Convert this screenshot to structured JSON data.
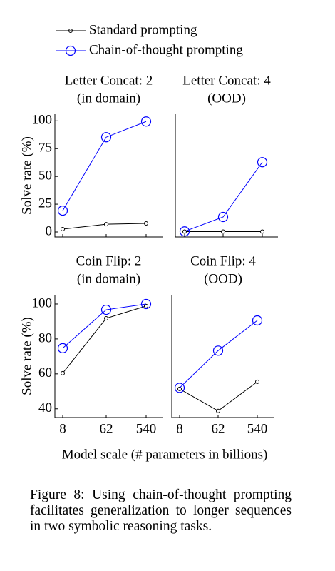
{
  "chart_data": [
    {
      "type": "line",
      "title": [
        "Letter Concat: 2",
        "(in domain)"
      ],
      "ylabel": "Solve rate (%)",
      "ylim": [
        -4.5,
        106
      ],
      "yticks": [
        0,
        25,
        50,
        75,
        100
      ],
      "series": [
        {
          "name": "Standard prompting",
          "color": "#000000",
          "values": [
            2.6,
            7,
            7.7
          ]
        },
        {
          "name": "Chain-of-thought prompting",
          "color": "#0000ff",
          "values": [
            19.2,
            85.3,
            99.4
          ]
        }
      ]
    },
    {
      "type": "line",
      "title": [
        "Letter Concat: 4",
        "(OOD)"
      ],
      "ylim": [
        -4.5,
        106
      ],
      "series": [
        {
          "color": "#000000",
          "values": [
            0.3,
            0.3,
            0.3
          ]
        },
        {
          "color": "#0000ff",
          "values": [
            0.5,
            13.5,
            62.8
          ]
        }
      ]
    },
    {
      "type": "line",
      "title": [
        "Coin Flip: 2",
        "(in domain)"
      ],
      "ylabel": "Solve rate (%)",
      "categories": [
        "8",
        "62",
        "540"
      ],
      "ylim": [
        35,
        105.3
      ],
      "yticks": [
        40,
        60,
        80,
        100
      ],
      "series": [
        {
          "color": "#000000",
          "values": [
            60.4,
            91.8,
            98.8
          ]
        },
        {
          "color": "#0000ff",
          "values": [
            74.7,
            96.7,
            100
          ]
        }
      ]
    },
    {
      "type": "line",
      "title": [
        "Coin Flip: 4",
        "(OOD)"
      ],
      "categories": [
        "8",
        "62",
        "540"
      ],
      "ylim": [
        35,
        105.3
      ],
      "series": [
        {
          "color": "#000000",
          "values": [
            51.4,
            38.8,
            55.5
          ]
        },
        {
          "color": "#0000ff",
          "values": [
            52,
            73.3,
            90.6
          ]
        }
      ]
    }
  ],
  "xlabel": "Model scale (# parameters in billions)",
  "caption": "Figure 8: Using chain-of-thought prompting facilitates generalization to longer sequences in two symbolic reasoning tasks."
}
